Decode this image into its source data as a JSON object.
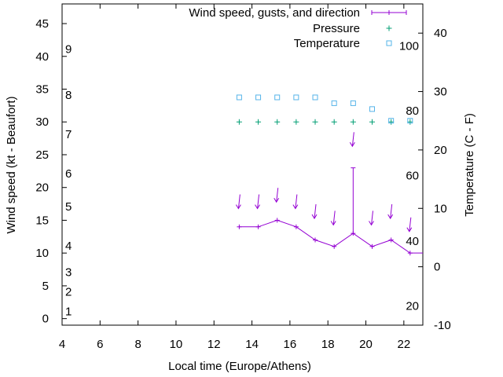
{
  "chart_data": {
    "type": "line",
    "title": "",
    "xlabel": "Local time (Europe/Athens)",
    "ylabel": "Wind speed (kt - Beaufort)",
    "y2label": "Temperature (C - F)",
    "xlim": [
      4,
      23
    ],
    "ylim": [
      -1,
      48
    ],
    "y2lim": [
      -10,
      45
    ],
    "x_ticks": [
      4,
      6,
      8,
      10,
      12,
      14,
      16,
      18,
      20,
      22
    ],
    "y_ticks": [
      0,
      5,
      10,
      15,
      20,
      25,
      30,
      35,
      40,
      45
    ],
    "y2_ticks": [
      -10,
      0,
      10,
      20,
      30,
      40
    ],
    "beaufort_labels": [
      {
        "label": "1",
        "y": 1.1
      },
      {
        "label": "2",
        "y": 4.1
      },
      {
        "label": "3",
        "y": 7.1
      },
      {
        "label": "4",
        "y": 11.1
      },
      {
        "label": "5",
        "y": 17.1
      },
      {
        "label": "6",
        "y": 22.1
      },
      {
        "label": "7",
        "y": 28.1
      },
      {
        "label": "8",
        "y": 34.1
      },
      {
        "label": "9",
        "y": 41.1
      }
    ],
    "fahrenheit_labels": [
      {
        "label": "20",
        "y2": -6.7
      },
      {
        "label": "40",
        "y2": 4.4
      },
      {
        "label": "60",
        "y2": 15.6
      },
      {
        "label": "80",
        "y2": 26.7
      },
      {
        "label": "100",
        "y2": 37.8
      }
    ],
    "legend": {
      "position": "top-right",
      "entries": [
        "Wind speed, gusts, and direction",
        "Pressure",
        "Temperature"
      ]
    },
    "series": [
      {
        "name": "Wind speed, gusts, and direction",
        "color": "#9400d3",
        "x": [
          13.33,
          14.33,
          15.33,
          16.33,
          17.33,
          18.33,
          19.33,
          20.33,
          21.33,
          22.33
        ],
        "values": [
          14,
          14,
          15,
          14,
          12,
          11,
          13,
          11,
          12,
          10
        ],
        "gusts": [
          null,
          null,
          null,
          null,
          null,
          null,
          23,
          null,
          null,
          null
        ],
        "direction_arrows": [
          {
            "x": 13.33,
            "y": 17.5
          },
          {
            "x": 14.33,
            "y": 17.5
          },
          {
            "x": 15.33,
            "y": 18.5
          },
          {
            "x": 16.33,
            "y": 17.5
          },
          {
            "x": 17.33,
            "y": 16.0
          },
          {
            "x": 18.33,
            "y": 15.0
          },
          {
            "x": 19.33,
            "y": 27.0
          },
          {
            "x": 20.33,
            "y": 15.0
          },
          {
            "x": 21.33,
            "y": 16.0
          },
          {
            "x": 22.33,
            "y": 14.0
          }
        ]
      },
      {
        "name": "Pressure",
        "color": "#009e73",
        "x": [
          13.33,
          14.33,
          15.33,
          16.33,
          17.33,
          18.33,
          19.33,
          20.33,
          21.33,
          22.33
        ],
        "values": [
          30,
          30,
          30,
          30,
          30,
          30,
          30,
          30,
          30,
          30
        ]
      },
      {
        "name": "Temperature",
        "color": "#56b4e9",
        "x": [
          13.33,
          14.33,
          15.33,
          16.33,
          17.33,
          18.33,
          19.33,
          20.33,
          21.33,
          22.33
        ],
        "values": [
          29,
          29,
          29,
          29,
          29,
          28,
          28,
          27,
          25,
          25
        ]
      }
    ]
  }
}
